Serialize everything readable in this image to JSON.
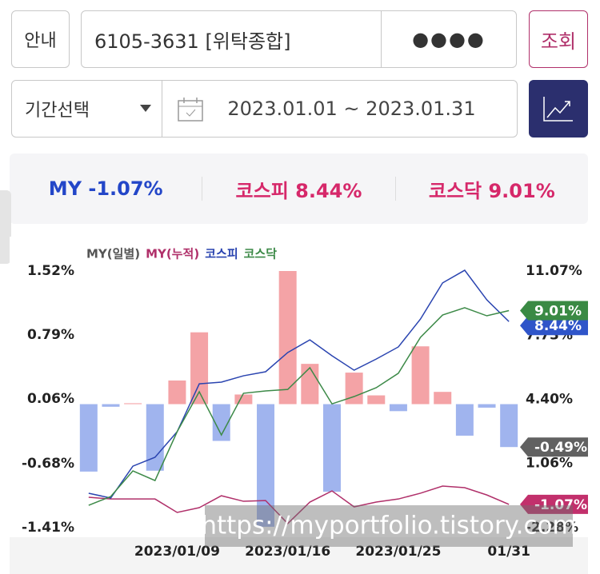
{
  "toolbar": {
    "guide": "안내",
    "account": "6105-3631 [위탁종합]",
    "password": "●●●●",
    "search": "조회",
    "period": "기간선택",
    "date_range": "2023.01.01 ~ 2023.01.31"
  },
  "summary": [
    {
      "name": "MY",
      "value": "-1.07%"
    },
    {
      "name": "코스피",
      "value": "8.44%"
    },
    {
      "name": "코스닥",
      "value": "9.01%"
    }
  ],
  "chart_data": {
    "type": "bar",
    "categories": [
      null,
      null,
      null,
      null,
      "2023/01/09",
      null,
      null,
      null,
      null,
      "2023/01/16",
      null,
      null,
      null,
      null,
      "2023/01/25",
      null,
      null,
      null,
      null,
      "01/31"
    ],
    "ylim": [
      -1.41,
      1.52
    ],
    "yticks": [
      {
        "value": 1.52,
        "label": "1.52%"
      },
      {
        "value": 0.79,
        "label": "0.79%"
      },
      {
        "value": 0.06,
        "label": "0.06%"
      },
      {
        "value": -0.68,
        "label": "-0.68%"
      },
      {
        "value": -1.41,
        "label": "-1.41%"
      }
    ],
    "y2lim": [
      -2.28,
      11.07
    ],
    "y2ticks": [
      {
        "value": 11.07,
        "label": "11.07%"
      },
      {
        "value": 7.73,
        "label": "7.73%"
      },
      {
        "value": 4.4,
        "label": "4.40%"
      },
      {
        "value": 1.06,
        "label": "1.06%"
      },
      {
        "value": -2.28,
        "label": "-2.28%"
      }
    ],
    "series": [
      {
        "name": "MY(일별)",
        "type": "bar",
        "color": "#555555",
        "positive_color": "#f4a3a6",
        "negative_color": "#a0b4ee",
        "values": [
          -0.77,
          -0.03,
          0.01,
          -0.76,
          0.27,
          0.82,
          -0.42,
          0.11,
          -1.4,
          1.52,
          0.46,
          -1.0,
          0.36,
          0.1,
          -0.08,
          0.66,
          0.14,
          -0.36,
          -0.04,
          -0.49
        ],
        "value_labels": [
          null,
          null,
          null,
          null,
          null,
          null,
          null,
          null,
          null,
          null,
          null,
          null,
          null,
          null,
          null,
          null,
          null,
          null,
          null,
          "-0.49%"
        ],
        "label_color": "#616161"
      },
      {
        "name": "MY(누적)",
        "type": "line",
        "axis": "y2",
        "color": "#b0306a",
        "values": [
          -0.7,
          -0.79,
          -0.79,
          -0.79,
          -1.49,
          -1.24,
          -0.62,
          -0.91,
          -0.87,
          -2.07,
          -0.95,
          -0.37,
          -1.2,
          -0.95,
          -0.79,
          -0.49,
          -0.12,
          -0.2,
          -0.58,
          -1.07
        ],
        "value_labels": [
          null,
          null,
          null,
          null,
          null,
          null,
          null,
          null,
          null,
          null,
          null,
          null,
          null,
          null,
          null,
          null,
          null,
          null,
          null,
          "-1.07%"
        ],
        "label_color": "#c2306c"
      },
      {
        "name": "코스피",
        "type": "line",
        "axis": "y2",
        "color": "#2a44b0",
        "values": [
          -0.49,
          -0.74,
          0.92,
          1.38,
          2.71,
          5.2,
          5.29,
          5.62,
          5.83,
          6.83,
          7.49,
          6.66,
          5.91,
          6.49,
          7.12,
          8.57,
          10.45,
          11.11,
          9.57,
          8.44
        ],
        "value_labels": [
          null,
          null,
          null,
          null,
          null,
          null,
          null,
          null,
          null,
          null,
          null,
          null,
          null,
          null,
          null,
          null,
          null,
          null,
          null,
          "8.44%"
        ],
        "label_color": "#2f55c9"
      },
      {
        "name": "코스닥",
        "type": "line",
        "axis": "y2",
        "color": "#3d8a48",
        "values": [
          -1.12,
          -0.66,
          0.67,
          0.17,
          2.71,
          4.79,
          2.54,
          4.71,
          4.83,
          4.91,
          6.04,
          4.16,
          4.54,
          5.0,
          5.75,
          7.62,
          8.78,
          9.16,
          8.74,
          9.01
        ],
        "value_labels": [
          null,
          null,
          null,
          null,
          null,
          null,
          null,
          null,
          null,
          null,
          null,
          null,
          null,
          null,
          null,
          null,
          null,
          null,
          null,
          "9.01%"
        ],
        "label_color": "#3a8a44"
      }
    ]
  },
  "watermark": "https://myportfolio.tistory.com"
}
